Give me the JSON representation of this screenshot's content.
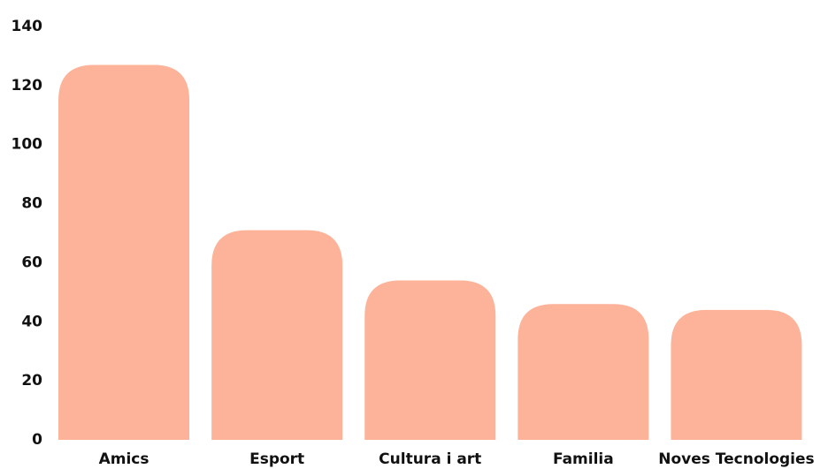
{
  "chart_data": {
    "type": "bar",
    "categories": [
      "Amics",
      "Esport",
      "Cultura i art",
      "Familia",
      "Noves Tecnologies"
    ],
    "values": [
      127,
      71,
      54,
      46,
      44
    ],
    "color": "#fdb399",
    "ylim": [
      0,
      140
    ],
    "yticks": [
      0,
      20,
      40,
      60,
      80,
      100,
      120,
      140
    ],
    "grid": false
  }
}
